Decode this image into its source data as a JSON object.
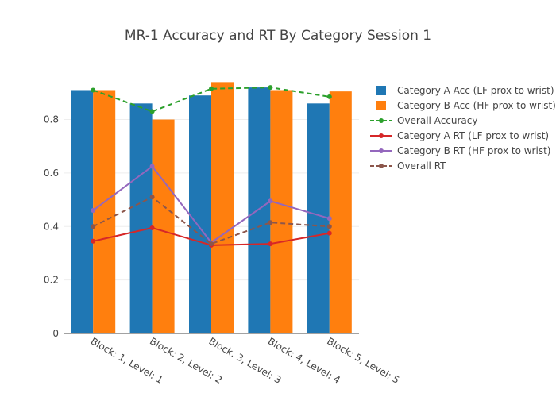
{
  "chart_data": {
    "type": "bar",
    "title": "MR-1 Accuracy and RT By Category Session 1",
    "xlabel": "",
    "ylabel": "",
    "categories": [
      "Block: 1, Level: 1",
      "Block: 2, Level: 2",
      "Block: 3, Level: 3",
      "Block: 4, Level: 4",
      "Block: 5, Level: 5"
    ],
    "ylim": [
      0,
      0.95
    ],
    "yticks": [
      "0",
      "0.2",
      "0.4",
      "0.6",
      "0.8"
    ],
    "grid": true,
    "legend_position": "right",
    "series": [
      {
        "name": "Category A Acc (LF prox to wrist)",
        "type": "bar",
        "color": "#1f77b4",
        "values": [
          0.91,
          0.86,
          0.89,
          0.92,
          0.86
        ]
      },
      {
        "name": "Category B Acc (HF prox to wrist)",
        "type": "bar",
        "color": "#ff7f0e",
        "values": [
          0.91,
          0.8,
          0.94,
          0.91,
          0.905
        ]
      },
      {
        "name": "Overall Accuracy",
        "type": "line",
        "dash": true,
        "color": "#2ca02c",
        "values": [
          0.91,
          0.83,
          0.915,
          0.92,
          0.885
        ]
      },
      {
        "name": "Category A RT (LF prox to wrist)",
        "type": "line",
        "dash": false,
        "color": "#d62728",
        "values": [
          0.345,
          0.395,
          0.33,
          0.335,
          0.375
        ]
      },
      {
        "name": "Category B RT (HF prox to wrist)",
        "type": "line",
        "dash": false,
        "color": "#9467bd",
        "values": [
          0.46,
          0.625,
          0.34,
          0.495,
          0.43
        ]
      },
      {
        "name": "Overall RT",
        "type": "line",
        "dash": true,
        "color": "#8c564b",
        "values": [
          0.4,
          0.51,
          0.335,
          0.415,
          0.4
        ]
      }
    ]
  }
}
